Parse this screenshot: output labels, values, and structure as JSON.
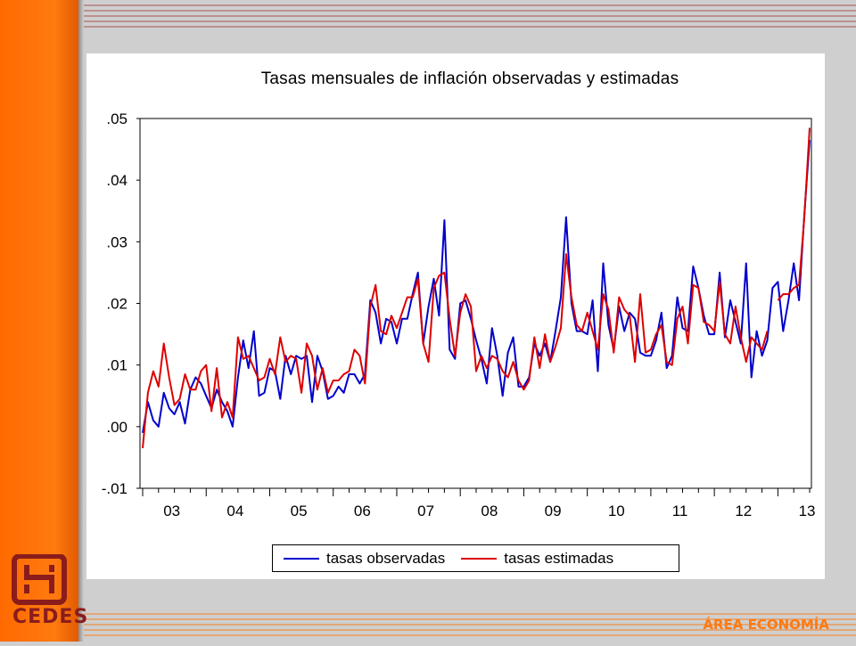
{
  "branding": {
    "logo_text": "CEDES",
    "footer_text": "ÁREA ECONOMÍA",
    "accent_color": "#ff6a00",
    "logo_color": "#8a1c1c"
  },
  "chart_data": {
    "type": "line",
    "title": "Tasas mensuales de inflación observadas y estimadas",
    "xlabel": "",
    "ylabel": "",
    "x_tick_labels": [
      "03",
      "04",
      "05",
      "06",
      "07",
      "08",
      "09",
      "10",
      "11",
      "12",
      "13"
    ],
    "y_tick_labels": [
      ".05",
      ".04",
      ".03",
      ".02",
      ".01",
      ".00",
      "-.01"
    ],
    "y_ticks": [
      0.05,
      0.04,
      0.03,
      0.02,
      0.01,
      0.0,
      -0.01
    ],
    "ylim": [
      -0.01,
      0.05
    ],
    "x_start": "2003-01",
    "x_frequency": "monthly",
    "grid": false,
    "legend_position": "bottom",
    "series": [
      {
        "name": "tasas observadas",
        "color": "#0000cc",
        "values": [
          -0.001,
          0.004,
          0.001,
          0.0,
          0.0055,
          0.003,
          0.002,
          0.004,
          0.0005,
          0.006,
          0.008,
          0.007,
          0.005,
          0.003,
          0.006,
          0.004,
          0.0025,
          0.0,
          0.008,
          0.014,
          0.0095,
          0.0155,
          0.005,
          0.0055,
          0.0095,
          0.009,
          0.0045,
          0.0115,
          0.0085,
          0.0115,
          0.011,
          0.0115,
          0.004,
          0.0115,
          0.009,
          0.0045,
          0.005,
          0.0065,
          0.0055,
          0.0085,
          0.0085,
          0.007,
          0.0085,
          0.0205,
          0.0185,
          0.0135,
          0.0175,
          0.017,
          0.0135,
          0.0175,
          0.0175,
          0.0215,
          0.025,
          0.0135,
          0.0195,
          0.024,
          0.018,
          0.0335,
          0.0125,
          0.011,
          0.02,
          0.0205,
          0.0175,
          0.014,
          0.011,
          0.007,
          0.016,
          0.0115,
          0.005,
          0.012,
          0.0145,
          0.0065,
          0.0065,
          0.008,
          0.0135,
          0.0115,
          0.0135,
          0.0105,
          0.0155,
          0.021,
          0.034,
          0.02,
          0.0155,
          0.0155,
          0.015,
          0.0205,
          0.009,
          0.0265,
          0.0165,
          0.0125,
          0.0195,
          0.0155,
          0.0185,
          0.0175,
          0.012,
          0.0115,
          0.0115,
          0.014,
          0.0185,
          0.0095,
          0.0115,
          0.021,
          0.016,
          0.0155,
          0.026,
          0.0225,
          0.018,
          0.015,
          0.015,
          0.025,
          0.0145,
          0.0205,
          0.017,
          0.0135,
          0.0265,
          0.008,
          0.0155,
          0.0115,
          0.014,
          0.0225,
          0.0235,
          0.0155,
          0.0205,
          0.0265,
          0.0205,
          0.0345,
          0.0465
        ]
      },
      {
        "name": "tasas estimadas",
        "color": "#dd0000",
        "values": [
          -0.0035,
          0.0055,
          0.009,
          0.0065,
          0.0135,
          0.008,
          0.0035,
          0.0045,
          0.0085,
          0.006,
          0.006,
          0.009,
          0.01,
          0.0025,
          0.0095,
          0.0015,
          0.004,
          0.0015,
          0.0145,
          0.011,
          0.0115,
          0.0095,
          0.0075,
          0.008,
          0.011,
          0.0085,
          0.0145,
          0.0105,
          0.0115,
          0.011,
          0.0055,
          0.0135,
          0.0115,
          0.006,
          0.0095,
          0.0055,
          0.0075,
          0.0075,
          0.0085,
          0.009,
          0.0125,
          0.0115,
          0.007,
          0.0195,
          0.023,
          0.0155,
          0.015,
          0.018,
          0.016,
          0.0185,
          0.021,
          0.021,
          0.024,
          0.0135,
          0.0105,
          0.0225,
          0.0245,
          0.025,
          0.0175,
          0.0115,
          0.0185,
          0.0215,
          0.0195,
          0.009,
          0.0115,
          0.0095,
          0.0115,
          0.011,
          0.009,
          0.008,
          0.0105,
          0.0075,
          0.006,
          0.0075,
          0.0145,
          0.0095,
          0.015,
          0.0105,
          0.013,
          0.016,
          0.028,
          0.021,
          0.0165,
          0.0155,
          0.0185,
          0.0155,
          0.0125,
          0.0215,
          0.019,
          0.012,
          0.021,
          0.019,
          0.018,
          0.0105,
          0.0215,
          0.012,
          0.0125,
          0.015,
          0.0165,
          0.0105,
          0.01,
          0.0175,
          0.0195,
          0.0135,
          0.023,
          0.0225,
          0.017,
          0.0165,
          0.0155,
          0.0235,
          0.015,
          0.0135,
          0.0195,
          0.0145,
          0.0105,
          0.0145,
          0.0135,
          0.0125,
          0.0155,
          null,
          0.0205,
          0.0215,
          0.0215,
          0.0225,
          0.023,
          0.034,
          0.0485
        ]
      }
    ]
  }
}
